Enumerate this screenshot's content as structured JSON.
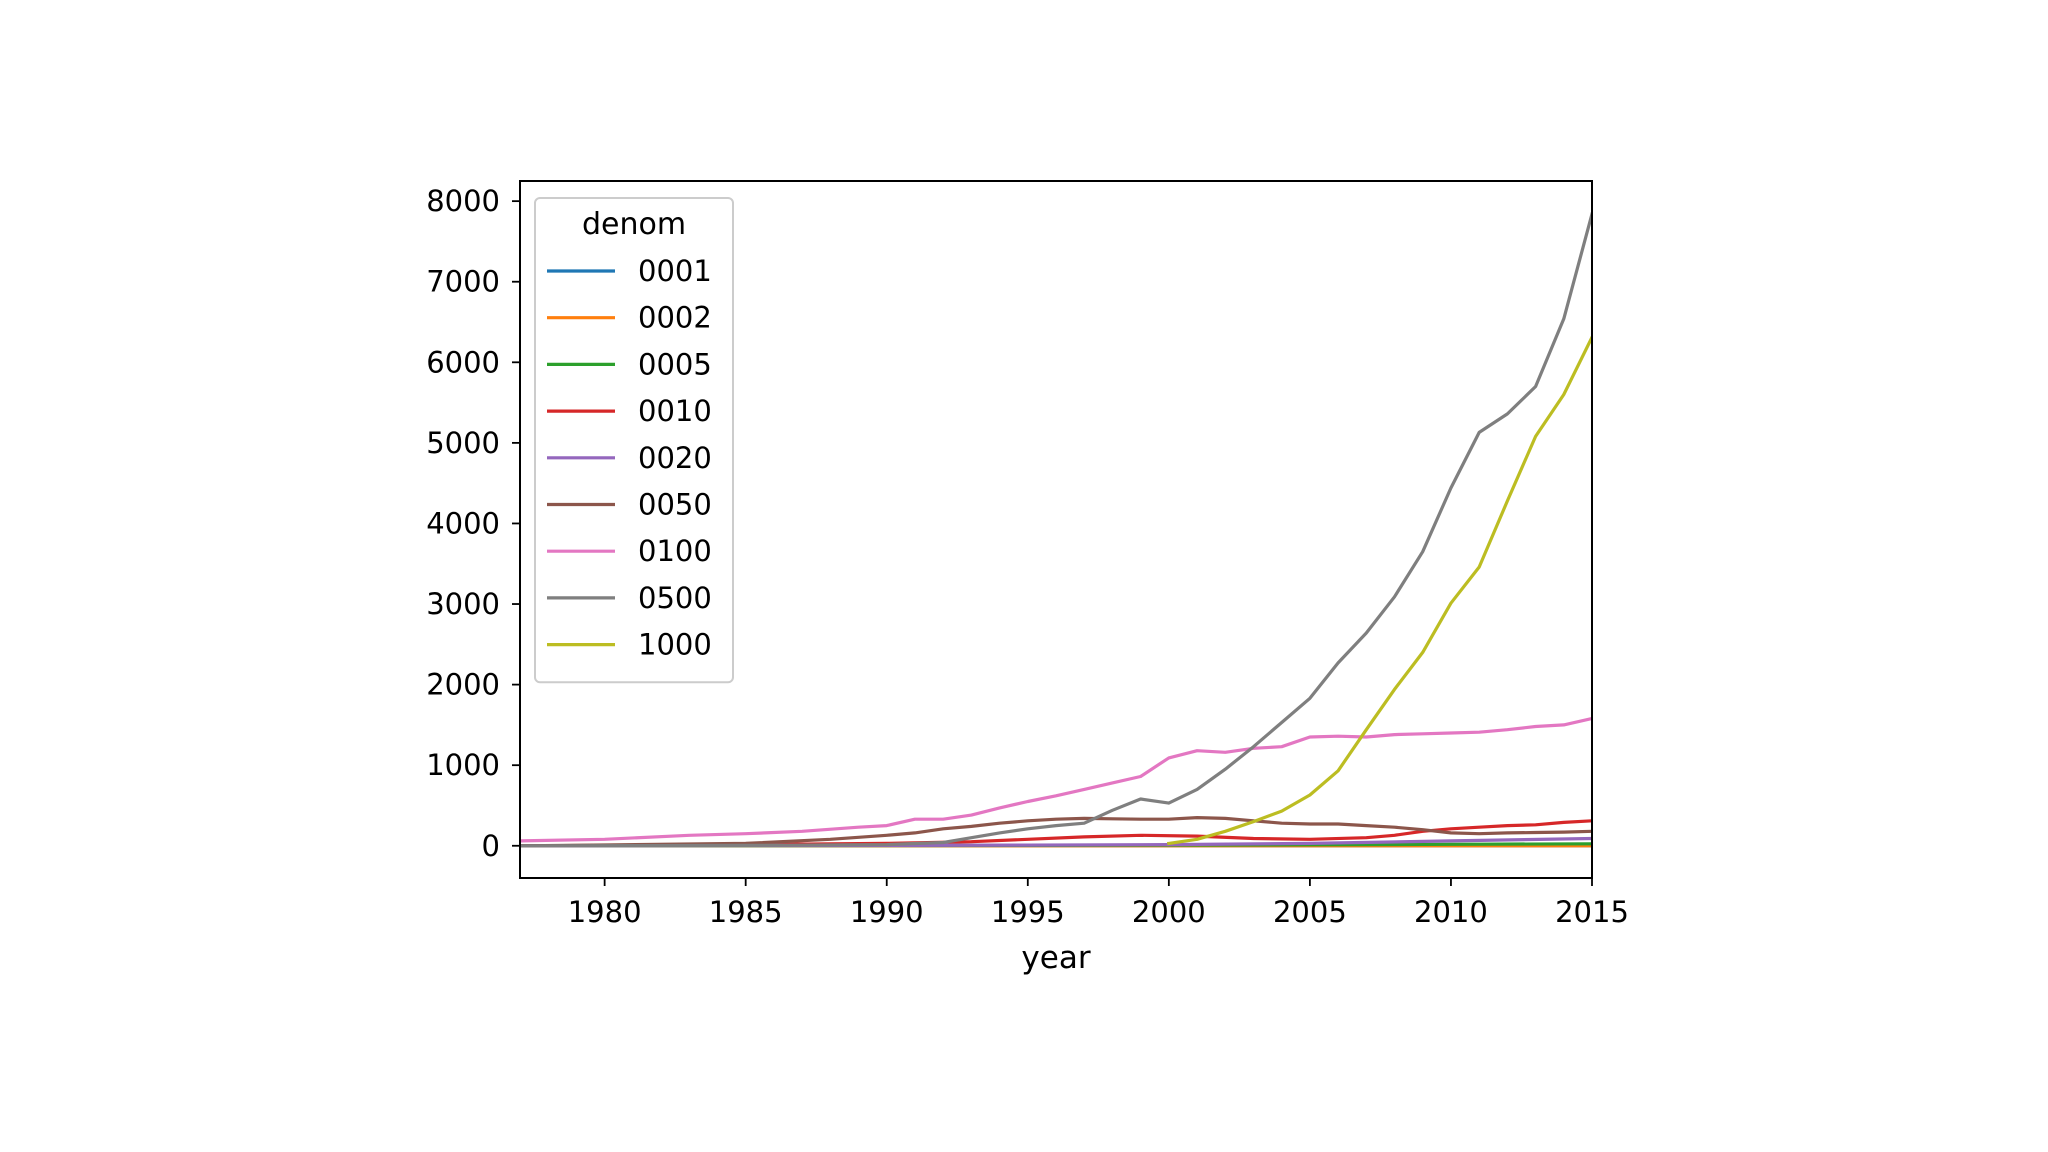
{
  "chart_data": {
    "type": "line",
    "title": "",
    "xlabel": "year",
    "ylabel": "",
    "xlim": [
      1977,
      2015
    ],
    "ylim": [
      -400,
      8250
    ],
    "xticks": [
      1980,
      1985,
      1990,
      1995,
      2000,
      2005,
      2010,
      2015
    ],
    "yticks": [
      0,
      1000,
      2000,
      3000,
      4000,
      5000,
      6000,
      7000,
      8000
    ],
    "grid": false,
    "legend": {
      "title": "denom",
      "placement": "top-left"
    },
    "series": [
      {
        "name": "0001",
        "color": "#1f77b4",
        "x": [
          1977,
          1985,
          1990,
          1995,
          2000,
          2005,
          2010,
          2015
        ],
        "y": [
          0,
          0,
          0,
          0,
          0,
          0,
          0,
          0
        ]
      },
      {
        "name": "0002",
        "color": "#ff7f0e",
        "x": [
          1977,
          1985,
          1990,
          1995,
          2000,
          2005,
          2010,
          2015
        ],
        "y": [
          0,
          0,
          0,
          0,
          0,
          0,
          0,
          0
        ]
      },
      {
        "name": "0005",
        "color": "#2ca02c",
        "x": [
          1977,
          1985,
          1990,
          1995,
          2000,
          2005,
          2010,
          2015
        ],
        "y": [
          0,
          2,
          3,
          5,
          8,
          12,
          18,
          25
        ]
      },
      {
        "name": "0010",
        "color": "#d62728",
        "x": [
          1977,
          1980,
          1985,
          1990,
          1993,
          1995,
          1997,
          1999,
          2001,
          2003,
          2005,
          2007,
          2008,
          2009,
          2010,
          2011,
          2012,
          2013,
          2014,
          2015
        ],
        "y": [
          0,
          5,
          15,
          30,
          50,
          80,
          110,
          130,
          120,
          90,
          80,
          100,
          130,
          180,
          210,
          230,
          250,
          260,
          290,
          310
        ]
      },
      {
        "name": "0020",
        "color": "#9467bd",
        "x": [
          1977,
          1985,
          1990,
          1995,
          2000,
          2005,
          2010,
          2015
        ],
        "y": [
          0,
          3,
          5,
          8,
          15,
          30,
          60,
          90
        ]
      },
      {
        "name": "0050",
        "color": "#8c564b",
        "x": [
          1977,
          1980,
          1985,
          1988,
          1990,
          1991,
          1992,
          1993,
          1994,
          1995,
          1996,
          1997,
          1998,
          1999,
          2000,
          2001,
          2002,
          2003,
          2004,
          2005,
          2006,
          2007,
          2008,
          2009,
          2010,
          2011,
          2012,
          2013,
          2014,
          2015
        ],
        "y": [
          0,
          10,
          30,
          80,
          130,
          160,
          210,
          240,
          280,
          310,
          330,
          340,
          335,
          330,
          330,
          350,
          340,
          310,
          280,
          270,
          270,
          250,
          230,
          200,
          160,
          150,
          160,
          165,
          170,
          180
        ]
      },
      {
        "name": "0100",
        "color": "#e377c2",
        "x": [
          1977,
          1980,
          1983,
          1985,
          1987,
          1989,
          1990,
          1991,
          1992,
          1993,
          1994,
          1995,
          1996,
          1997,
          1998,
          1999,
          2000,
          2001,
          2002,
          2003,
          2004,
          2005,
          2006,
          2007,
          2008,
          2009,
          2010,
          2011,
          2012,
          2013,
          2014,
          2015
        ],
        "y": [
          60,
          80,
          130,
          150,
          180,
          230,
          250,
          330,
          330,
          380,
          470,
          550,
          620,
          700,
          780,
          860,
          1090,
          1180,
          1160,
          1210,
          1230,
          1350,
          1360,
          1350,
          1380,
          1390,
          1400,
          1410,
          1440,
          1480,
          1500,
          1580
        ]
      },
      {
        "name": "0500",
        "color": "#7f7f7f",
        "x": [
          1977,
          1985,
          1990,
          1992,
          1993,
          1994,
          1995,
          1996,
          1997,
          1998,
          1999,
          2000,
          2001,
          2002,
          2003,
          2004,
          2005,
          2006,
          2007,
          2008,
          2009,
          2010,
          2011,
          2012,
          2013,
          2014,
          2015
        ],
        "y": [
          0,
          5,
          15,
          40,
          100,
          160,
          210,
          250,
          280,
          440,
          580,
          530,
          700,
          950,
          1230,
          1530,
          1830,
          2270,
          2640,
          3090,
          3650,
          4440,
          5130,
          5360,
          5700,
          6540,
          7840
        ]
      },
      {
        "name": "1000",
        "color": "#bcbd22",
        "x": [
          2000,
          2001,
          2002,
          2003,
          2004,
          2005,
          2006,
          2007,
          2008,
          2009,
          2010,
          2011,
          2012,
          2013,
          2014,
          2015
        ],
        "y": [
          30,
          80,
          180,
          300,
          430,
          630,
          930,
          1440,
          1940,
          2400,
          3010,
          3460,
          4280,
          5080,
          5600,
          6310
        ]
      }
    ]
  }
}
